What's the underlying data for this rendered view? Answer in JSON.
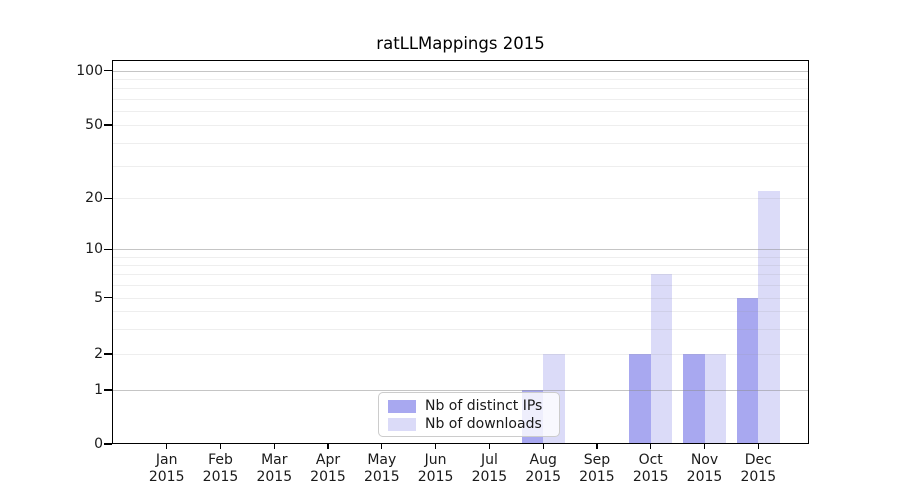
{
  "chart_data": {
    "type": "bar",
    "title": "ratLLMappings 2015",
    "categories": [
      "Jan",
      "Feb",
      "Mar",
      "Apr",
      "May",
      "Jun",
      "Jul",
      "Aug",
      "Sep",
      "Oct",
      "Nov",
      "Dec"
    ],
    "year_label": "2015",
    "series": [
      {
        "name": "Nb of distinct IPs",
        "color": "#a8a8f0",
        "values": [
          0,
          0,
          0,
          0,
          0,
          0,
          0,
          1,
          0,
          2,
          2,
          5
        ]
      },
      {
        "name": "Nb of downloads",
        "color": "#dbdbf8",
        "values": [
          0,
          0,
          0,
          0,
          0,
          0,
          0,
          2,
          0,
          7,
          2,
          22
        ]
      }
    ],
    "y_ticks": [
      0,
      1,
      2,
      5,
      10,
      20,
      50,
      100
    ],
    "y_decade_ticks": [
      1,
      10,
      100
    ],
    "y_minor_gridlines": [
      3,
      4,
      6,
      7,
      8,
      9,
      30,
      40,
      60,
      70,
      80,
      90
    ],
    "ylim": [
      0,
      100
    ],
    "y_scale": "log-like (0,1,2,5,10,20,50,100)",
    "grid": "horizontal, drawn above bars",
    "legend_position": "inside bottom-center"
  }
}
